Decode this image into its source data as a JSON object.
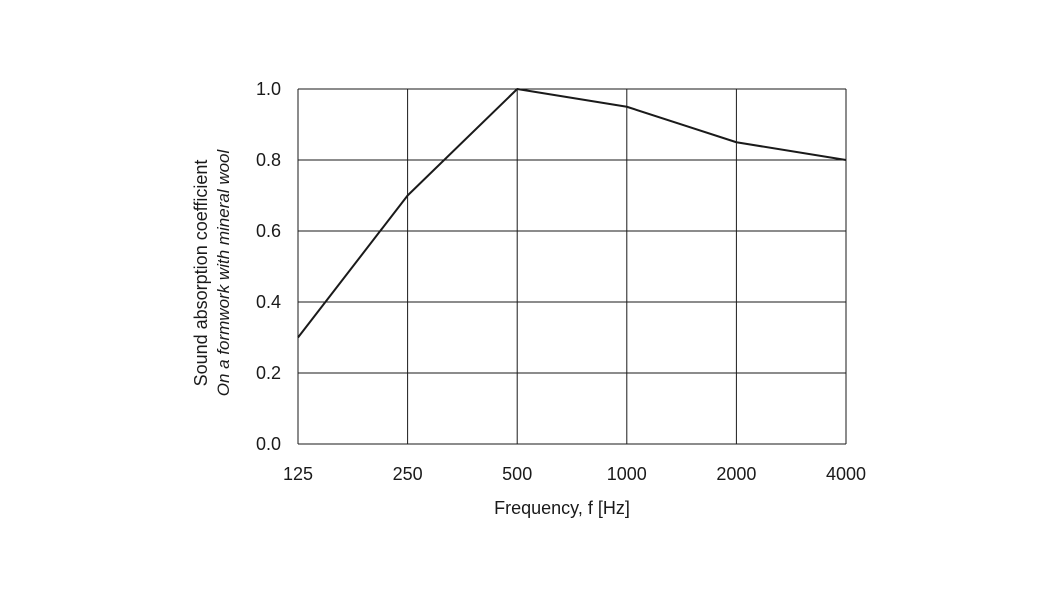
{
  "chart_data": {
    "type": "line",
    "categories": [
      "125",
      "250",
      "500",
      "1000",
      "2000",
      "4000"
    ],
    "series": [
      {
        "values": [
          0.3,
          0.7,
          1.0,
          0.95,
          0.85,
          0.8
        ]
      }
    ],
    "xlabel": "Frequency, f [Hz]",
    "ylabel": "Sound absorption coefficient",
    "ylabel_sub": "On a formwork with mineral wool",
    "ylim": [
      0.0,
      1.0
    ],
    "yticks": [
      "0.0",
      "0.2",
      "0.4",
      "0.6",
      "0.8",
      "1.0"
    ],
    "grid": true,
    "colors": {
      "line": "#1a1a1a",
      "grid": "#1a1a1a",
      "text": "#1a1a1a"
    }
  }
}
